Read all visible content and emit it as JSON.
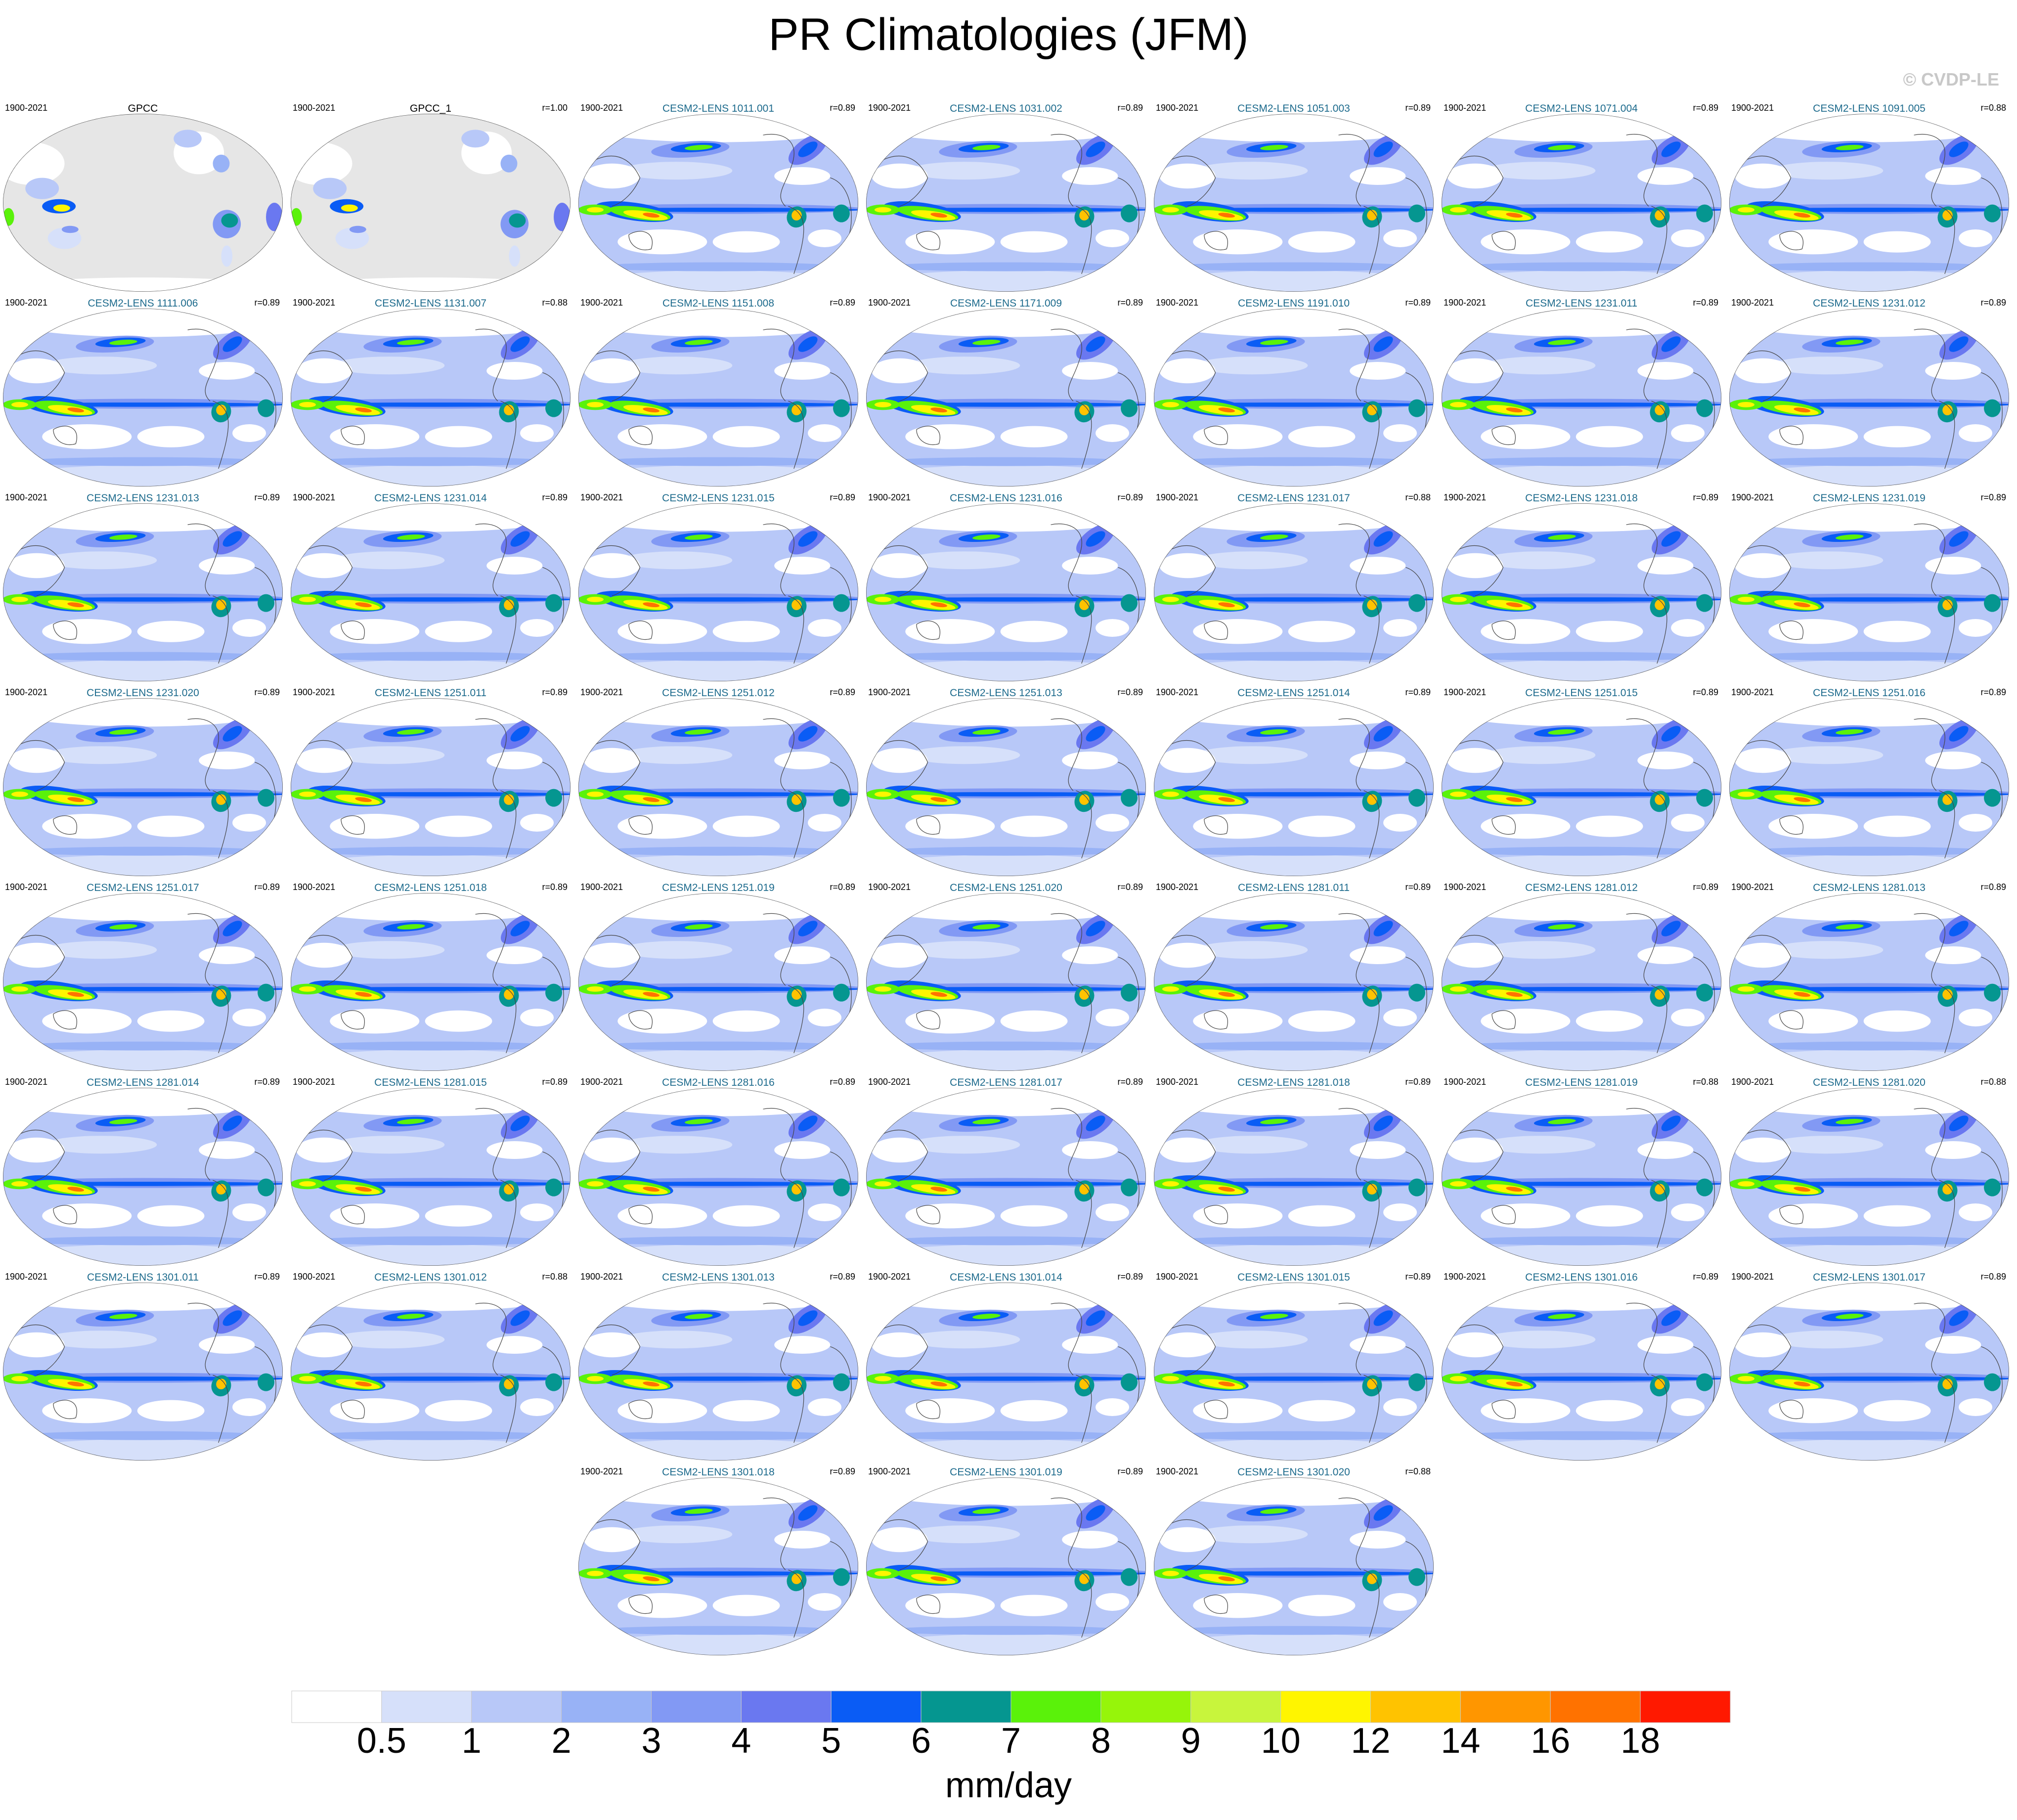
{
  "title": "PR Climatologies (JFM)",
  "watermark": "© CVDP-LE",
  "chart_data": {
    "type": "heatmap",
    "projection": "Robinson, Pacific-centered",
    "season": "JFM",
    "colors": {
      "ocean_masked": "#e6e6e6",
      "title_obs": "#000000",
      "title_model": "#1c6a8c"
    },
    "panels": [
      {
        "title": "GPCC",
        "years": "1900-2021",
        "r": "",
        "kind": "obs"
      },
      {
        "title": "GPCC_1",
        "years": "1900-2021",
        "r": "r=1.00",
        "kind": "obs"
      },
      {
        "title": "CESM2-LENS 1011.001",
        "years": "1900-2021",
        "r": "r=0.89",
        "kind": "model"
      },
      {
        "title": "CESM2-LENS 1031.002",
        "years": "1900-2021",
        "r": "r=0.89",
        "kind": "model"
      },
      {
        "title": "CESM2-LENS 1051.003",
        "years": "1900-2021",
        "r": "r=0.89",
        "kind": "model"
      },
      {
        "title": "CESM2-LENS 1071.004",
        "years": "1900-2021",
        "r": "r=0.89",
        "kind": "model"
      },
      {
        "title": "CESM2-LENS 1091.005",
        "years": "1900-2021",
        "r": "r=0.88",
        "kind": "model"
      },
      {
        "title": "CESM2-LENS 1111.006",
        "years": "1900-2021",
        "r": "r=0.89",
        "kind": "model"
      },
      {
        "title": "CESM2-LENS 1131.007",
        "years": "1900-2021",
        "r": "r=0.88",
        "kind": "model"
      },
      {
        "title": "CESM2-LENS 1151.008",
        "years": "1900-2021",
        "r": "r=0.89",
        "kind": "model"
      },
      {
        "title": "CESM2-LENS 1171.009",
        "years": "1900-2021",
        "r": "r=0.89",
        "kind": "model"
      },
      {
        "title": "CESM2-LENS 1191.010",
        "years": "1900-2021",
        "r": "r=0.89",
        "kind": "model"
      },
      {
        "title": "CESM2-LENS 1231.011",
        "years": "1900-2021",
        "r": "r=0.89",
        "kind": "model"
      },
      {
        "title": "CESM2-LENS 1231.012",
        "years": "1900-2021",
        "r": "r=0.89",
        "kind": "model"
      },
      {
        "title": "CESM2-LENS 1231.013",
        "years": "1900-2021",
        "r": "r=0.89",
        "kind": "model"
      },
      {
        "title": "CESM2-LENS 1231.014",
        "years": "1900-2021",
        "r": "r=0.89",
        "kind": "model"
      },
      {
        "title": "CESM2-LENS 1231.015",
        "years": "1900-2021",
        "r": "r=0.89",
        "kind": "model"
      },
      {
        "title": "CESM2-LENS 1231.016",
        "years": "1900-2021",
        "r": "r=0.89",
        "kind": "model"
      },
      {
        "title": "CESM2-LENS 1231.017",
        "years": "1900-2021",
        "r": "r=0.88",
        "kind": "model"
      },
      {
        "title": "CESM2-LENS 1231.018",
        "years": "1900-2021",
        "r": "r=0.89",
        "kind": "model"
      },
      {
        "title": "CESM2-LENS 1231.019",
        "years": "1900-2021",
        "r": "r=0.89",
        "kind": "model"
      },
      {
        "title": "CESM2-LENS 1231.020",
        "years": "1900-2021",
        "r": "r=0.89",
        "kind": "model"
      },
      {
        "title": "CESM2-LENS 1251.011",
        "years": "1900-2021",
        "r": "r=0.89",
        "kind": "model"
      },
      {
        "title": "CESM2-LENS 1251.012",
        "years": "1900-2021",
        "r": "r=0.89",
        "kind": "model"
      },
      {
        "title": "CESM2-LENS 1251.013",
        "years": "1900-2021",
        "r": "r=0.89",
        "kind": "model"
      },
      {
        "title": "CESM2-LENS 1251.014",
        "years": "1900-2021",
        "r": "r=0.89",
        "kind": "model"
      },
      {
        "title": "CESM2-LENS 1251.015",
        "years": "1900-2021",
        "r": "r=0.89",
        "kind": "model"
      },
      {
        "title": "CESM2-LENS 1251.016",
        "years": "1900-2021",
        "r": "r=0.89",
        "kind": "model"
      },
      {
        "title": "CESM2-LENS 1251.017",
        "years": "1900-2021",
        "r": "r=0.89",
        "kind": "model"
      },
      {
        "title": "CESM2-LENS 1251.018",
        "years": "1900-2021",
        "r": "r=0.89",
        "kind": "model"
      },
      {
        "title": "CESM2-LENS 1251.019",
        "years": "1900-2021",
        "r": "r=0.89",
        "kind": "model"
      },
      {
        "title": "CESM2-LENS 1251.020",
        "years": "1900-2021",
        "r": "r=0.89",
        "kind": "model"
      },
      {
        "title": "CESM2-LENS 1281.011",
        "years": "1900-2021",
        "r": "r=0.89",
        "kind": "model"
      },
      {
        "title": "CESM2-LENS 1281.012",
        "years": "1900-2021",
        "r": "r=0.89",
        "kind": "model"
      },
      {
        "title": "CESM2-LENS 1281.013",
        "years": "1900-2021",
        "r": "r=0.89",
        "kind": "model"
      },
      {
        "title": "CESM2-LENS 1281.014",
        "years": "1900-2021",
        "r": "r=0.89",
        "kind": "model"
      },
      {
        "title": "CESM2-LENS 1281.015",
        "years": "1900-2021",
        "r": "r=0.89",
        "kind": "model"
      },
      {
        "title": "CESM2-LENS 1281.016",
        "years": "1900-2021",
        "r": "r=0.89",
        "kind": "model"
      },
      {
        "title": "CESM2-LENS 1281.017",
        "years": "1900-2021",
        "r": "r=0.89",
        "kind": "model"
      },
      {
        "title": "CESM2-LENS 1281.018",
        "years": "1900-2021",
        "r": "r=0.89",
        "kind": "model"
      },
      {
        "title": "CESM2-LENS 1281.019",
        "years": "1900-2021",
        "r": "r=0.88",
        "kind": "model"
      },
      {
        "title": "CESM2-LENS 1281.020",
        "years": "1900-2021",
        "r": "r=0.88",
        "kind": "model"
      },
      {
        "title": "CESM2-LENS 1301.011",
        "years": "1900-2021",
        "r": "r=0.89",
        "kind": "model"
      },
      {
        "title": "CESM2-LENS 1301.012",
        "years": "1900-2021",
        "r": "r=0.88",
        "kind": "model"
      },
      {
        "title": "CESM2-LENS 1301.013",
        "years": "1900-2021",
        "r": "r=0.89",
        "kind": "model"
      },
      {
        "title": "CESM2-LENS 1301.014",
        "years": "1900-2021",
        "r": "r=0.89",
        "kind": "model"
      },
      {
        "title": "CESM2-LENS 1301.015",
        "years": "1900-2021",
        "r": "r=0.89",
        "kind": "model"
      },
      {
        "title": "CESM2-LENS 1301.016",
        "years": "1900-2021",
        "r": "r=0.89",
        "kind": "model"
      },
      {
        "title": "CESM2-LENS 1301.017",
        "years": "1900-2021",
        "r": "r=0.89",
        "kind": "model"
      },
      {
        "title": "CESM2-LENS 1301.018",
        "years": "1900-2021",
        "r": "r=0.89",
        "kind": "model"
      },
      {
        "title": "CESM2-LENS 1301.019",
        "years": "1900-2021",
        "r": "r=0.89",
        "kind": "model"
      },
      {
        "title": "CESM2-LENS 1301.020",
        "years": "1900-2021",
        "r": "r=0.88",
        "kind": "model"
      }
    ],
    "colorbar": {
      "unit": "mm/day",
      "ticks": [
        "0.5",
        "1",
        "2",
        "3",
        "4",
        "5",
        "6",
        "7",
        "8",
        "9",
        "10",
        "12",
        "14",
        "16",
        "18"
      ],
      "colors": [
        "#ffffff",
        "#d6e0fa",
        "#b8c8f8",
        "#98b2f6",
        "#8299f4",
        "#6a78f0",
        "#0a5cf5",
        "#059690",
        "#5af20a",
        "#96f50a",
        "#c8f53c",
        "#fff500",
        "#ffc300",
        "#ff9600",
        "#ff7200",
        "#ff1900"
      ]
    }
  }
}
